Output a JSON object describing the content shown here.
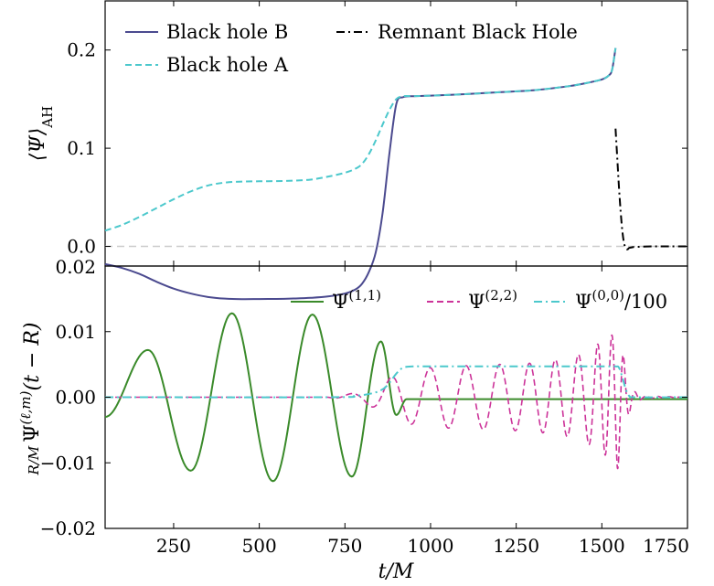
{
  "chart_data": [
    {
      "type": "line",
      "panel": "top",
      "ylabel": "⟨Ψ⟩_AH",
      "xlim": [
        50,
        1750
      ],
      "ylim": [
        -0.02,
        0.25
      ],
      "yticks": [
        0.0,
        0.1,
        0.2
      ],
      "ytick_labels": [
        "0.0",
        "0.1",
        "0.2"
      ],
      "ytick_label_bottom": "0.02",
      "legend": "top, two columns",
      "reference_line": {
        "y": 0.0,
        "style": "dashed",
        "color": "#cccccc"
      },
      "series": [
        {
          "name": "Black hole B",
          "color": "#4b4a8f",
          "style": "solid",
          "x": [
            50,
            100,
            150,
            200,
            250,
            300,
            350,
            400,
            450,
            500,
            550,
            600,
            650,
            700,
            750,
            780,
            800,
            820,
            840,
            860,
            880,
            900,
            920,
            950,
            1000,
            1100,
            1200,
            1300,
            1400,
            1450,
            1500,
            1520,
            1530,
            1540
          ],
          "y": [
            -0.018,
            -0.022,
            -0.028,
            -0.036,
            -0.043,
            -0.048,
            -0.0515,
            -0.0532,
            -0.0537,
            -0.0536,
            -0.0535,
            -0.0531,
            -0.0524,
            -0.051,
            -0.048,
            -0.044,
            -0.038,
            -0.026,
            -0.006,
            0.034,
            0.095,
            0.145,
            0.152,
            0.153,
            0.1535,
            0.155,
            0.157,
            0.159,
            0.163,
            0.166,
            0.17,
            0.174,
            0.18,
            0.202
          ]
        },
        {
          "name": "Black hole A",
          "color": "#4cc8cc",
          "style": "dashed",
          "x": [
            50,
            100,
            150,
            200,
            250,
            300,
            350,
            400,
            450,
            500,
            550,
            600,
            650,
            700,
            750,
            780,
            800,
            820,
            840,
            860,
            880,
            900,
            920,
            950,
            1000,
            1100,
            1200,
            1300,
            1400,
            1450,
            1500,
            1520,
            1530,
            1540
          ],
          "y": [
            0.016,
            0.022,
            0.03,
            0.039,
            0.048,
            0.056,
            0.062,
            0.065,
            0.066,
            0.0663,
            0.0665,
            0.067,
            0.068,
            0.071,
            0.075,
            0.079,
            0.084,
            0.094,
            0.108,
            0.124,
            0.139,
            0.15,
            0.153,
            0.153,
            0.1535,
            0.155,
            0.157,
            0.159,
            0.163,
            0.166,
            0.17,
            0.174,
            0.18,
            0.202
          ]
        },
        {
          "name": "Remnant Black Hole",
          "color": "#000000",
          "style": "dashdot",
          "x": [
            1540,
            1545,
            1550,
            1555,
            1560,
            1565,
            1570,
            1575,
            1580,
            1590,
            1600,
            1650,
            1700,
            1750
          ],
          "y": [
            0.12,
            0.09,
            0.06,
            0.035,
            0.015,
            0.003,
            -0.002,
            -0.003,
            -0.0015,
            -0.0008,
            -0.0005,
            0.0,
            0.0,
            0.0
          ]
        }
      ]
    },
    {
      "type": "line",
      "panel": "bottom",
      "xlabel": "t/M",
      "ylabel": "(R/M) Ψ^(ℓ,m)(t − R)",
      "xlim": [
        50,
        1750
      ],
      "ylim": [
        -0.02,
        0.02
      ],
      "xticks": [
        250,
        500,
        750,
        1000,
        1250,
        1500,
        1750
      ],
      "yticks": [
        -0.02,
        -0.01,
        0.0,
        0.01
      ],
      "ytick_labels": [
        "−0.02",
        "−0.01",
        "0.00",
        "0.01"
      ],
      "legend": "top-right, one row",
      "series": [
        {
          "name": "Ψ^(1,1)",
          "color": "#3a8a2a",
          "style": "solid",
          "model": "peaks",
          "x": [
            50,
            175,
            300,
            420,
            540,
            655,
            770,
            855,
            900,
            930,
            1750
          ],
          "y": [
            -0.003,
            0.0072,
            -0.0112,
            0.0128,
            -0.0128,
            0.0126,
            -0.0121,
            0.0085,
            -0.0027,
            -0.0003,
            -0.0003
          ]
        },
        {
          "name": "Ψ^(2,2)",
          "color": "#cc3399",
          "style": "dashed",
          "model": "chirp",
          "x": [
            50,
            700,
            800,
            850,
            900,
            950,
            1000,
            1050,
            1100,
            1200,
            1300,
            1400,
            1450,
            1500,
            1530,
            1545,
            1555,
            1570,
            1590,
            1620,
            1750
          ],
          "envelope": [
            0.0,
            0.0,
            0.0008,
            0.002,
            0.0035,
            0.0042,
            0.0045,
            0.0047,
            0.0048,
            0.005,
            0.0052,
            0.006,
            0.0068,
            0.0085,
            0.0095,
            0.0112,
            0.009,
            0.004,
            0.001,
            0.0002,
            0.0
          ],
          "zero_crossings_per_100M_at": {
            "x": [
              900,
              1200,
              1450,
              1550
            ],
            "value": [
              1.7,
              2.1,
              3.2,
              6.0
            ]
          }
        },
        {
          "name": "Ψ^(0,0)/100",
          "color": "#4cc8cc",
          "style": "dashdot",
          "x": [
            50,
            700,
            780,
            830,
            860,
            880,
            900,
            920,
            950,
            1000,
            1200,
            1400,
            1500,
            1540,
            1550,
            1560,
            1570,
            1580,
            1600,
            1750
          ],
          "y": [
            0.0,
            0.0,
            0.0002,
            0.0006,
            0.0012,
            0.0022,
            0.0036,
            0.0045,
            0.0047,
            0.0047,
            0.0047,
            0.0047,
            0.0047,
            0.0047,
            0.0045,
            0.003,
            0.0012,
            0.0002,
            0.0,
            0.0
          ]
        }
      ]
    }
  ]
}
